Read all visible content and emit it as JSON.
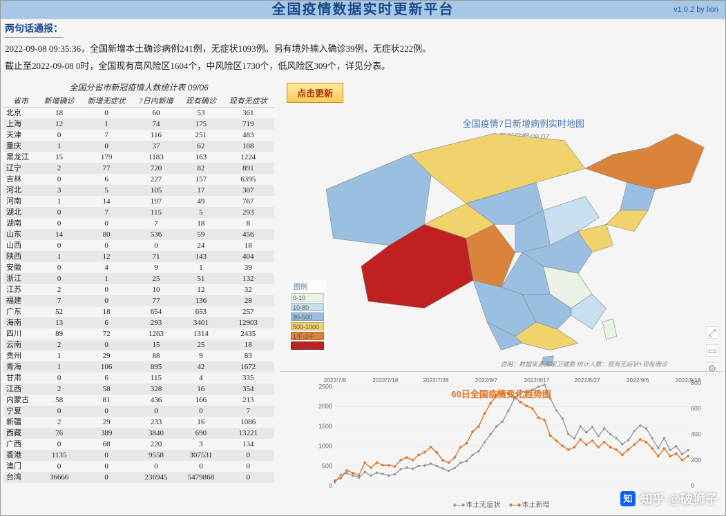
{
  "header": {
    "title": "全国疫情数据实时更新平台",
    "version": "v1.0.2 by lion"
  },
  "briefing": {
    "title": "两句话通报：",
    "line1": "2022-09-08 09:35:36，全国新增本土确诊病例241例，无症状1093例。另有境外输入确诊39例，无症状222例。",
    "line2": "截止至2022-09-08 0时，全国现有高风险区1604个，中风险区1730个，低风险区309个，详见分表。"
  },
  "update_button": "点击更新",
  "table": {
    "title": "全国分省市新冠疫情人数统计表  09/06",
    "columns": [
      "省市",
      "新增确诊",
      "新增无症状",
      "7日内新增",
      "现有确诊",
      "现有无症状"
    ],
    "rows": [
      [
        "北京",
        18,
        0,
        60,
        53,
        361
      ],
      [
        "上海",
        12,
        1,
        74,
        175,
        719
      ],
      [
        "天津",
        0,
        7,
        116,
        251,
        483
      ],
      [
        "重庆",
        1,
        0,
        37,
        62,
        108
      ],
      [
        "黑龙江",
        15,
        179,
        1183,
        163,
        1224
      ],
      [
        "辽宁",
        2,
        77,
        720,
        82,
        891
      ],
      [
        "吉林",
        0,
        6,
        227,
        157,
        6395
      ],
      [
        "河北",
        3,
        5,
        105,
        17,
        307
      ],
      [
        "河南",
        1,
        14,
        197,
        49,
        767
      ],
      [
        "湖北",
        0,
        7,
        115,
        5,
        293
      ],
      [
        "湖南",
        0,
        0,
        7,
        18,
        8
      ],
      [
        "山东",
        14,
        80,
        536,
        59,
        456
      ],
      [
        "山西",
        0,
        0,
        0,
        24,
        18
      ],
      [
        "陕西",
        1,
        12,
        71,
        143,
        404
      ],
      [
        "安徽",
        0,
        4,
        9,
        1,
        39
      ],
      [
        "浙江",
        0,
        1,
        25,
        51,
        132
      ],
      [
        "江苏",
        2,
        0,
        10,
        12,
        32
      ],
      [
        "福建",
        7,
        0,
        77,
        136,
        28
      ],
      [
        "广东",
        52,
        18,
        654,
        653,
        257
      ],
      [
        "海南",
        13,
        6,
        293,
        3401,
        12903
      ],
      [
        "四川",
        89,
        72,
        1263,
        1314,
        2435
      ],
      [
        "云南",
        2,
        0,
        15,
        25,
        18
      ],
      [
        "贵州",
        1,
        29,
        88,
        9,
        83
      ],
      [
        "青海",
        1,
        106,
        895,
        42,
        1672
      ],
      [
        "甘肃",
        0,
        6,
        115,
        4,
        335
      ],
      [
        "江西",
        2,
        58,
        328,
        16,
        354
      ],
      [
        "内蒙古",
        58,
        81,
        436,
        166,
        213
      ],
      [
        "宁夏",
        0,
        0,
        0,
        0,
        7
      ],
      [
        "新疆",
        2,
        29,
        233,
        16,
        1086
      ],
      [
        "西藏",
        76,
        389,
        3840,
        690,
        13221
      ],
      [
        "广西",
        0,
        68,
        220,
        3,
        134
      ],
      [
        "香港",
        1135,
        0,
        9558,
        307531,
        0
      ],
      [
        "澳门",
        0,
        0,
        0,
        0,
        0
      ],
      [
        "台湾",
        36666,
        0,
        236945,
        5479868,
        0
      ]
    ],
    "alt_row_bg": "#e8e8e8"
  },
  "map": {
    "title": "全国疫情7日新增病例实时地图",
    "subtitle": "更新日期    09.07",
    "note": "说明：数据来源国家卫健委  统计人数：现有无症状+现有确诊",
    "legend_title": "图例",
    "legend": [
      {
        "label": "0-10",
        "color": "#eaf3e6"
      },
      {
        "label": "10-80",
        "color": "#c8dff0"
      },
      {
        "label": "80-500",
        "color": "#9bbfe0"
      },
      {
        "label": "500-1000",
        "color": "#f2d26b"
      },
      {
        "label": "1千-3千",
        "color": "#d9843a"
      },
      {
        "label": "3千以上",
        "color": "#c02020"
      }
    ],
    "colors": {
      "background": "#ffffff",
      "border": "#888888",
      "tibet": "#c02020",
      "sichuan": "#d9843a",
      "heilongjiang": "#d9843a",
      "qinghai": "#f2d26b",
      "inner_mongolia": "#f2d26b",
      "guangdong": "#f2d26b",
      "xinjiang": "#9bbfe0",
      "gansu": "#9bbfe0",
      "shaanxi": "#9bbfe0",
      "yunnan": "#9bbfe0",
      "guizhou": "#9bbfe0",
      "hubei": "#9bbfe0",
      "shandong": "#f2d26b",
      "hebei": "#9bbfe0",
      "henan": "#9bbfe0",
      "jilin": "#9bbfe0",
      "liaoning": "#f2d26b",
      "zhejiang": "#eaf3e6",
      "jiangxi": "#9bbfe0",
      "fujian": "#c8dff0",
      "guangxi": "#9bbfe0",
      "hainan": "#9bbfe0",
      "other": "#c8dff0",
      "light": "#eaf3e6"
    }
  },
  "chart": {
    "title": "60日全国疫情变化趋势图",
    "x_labels": [
      "2022/7/8",
      "2022/7/18",
      "2022/7/28",
      "2022/8/7",
      "2022/8/17",
      "2022/8/27",
      "2022/9/6",
      "2022/9/16"
    ],
    "y_left_ticks": [
      0,
      500,
      1000,
      1500,
      2000,
      2500
    ],
    "y_right_ticks": [
      0,
      200,
      400,
      600,
      800
    ],
    "series": [
      {
        "name": "本土无症状",
        "color": "#999999",
        "marker": "circle"
      },
      {
        "name": "本土新增",
        "color": "#e07020",
        "marker": "circle"
      }
    ],
    "series1_values": [
      90,
      280,
      320,
      260,
      210,
      350,
      260,
      330,
      300,
      260,
      290,
      420,
      460,
      430,
      500,
      510,
      560,
      500,
      440,
      380,
      450,
      580,
      620,
      780,
      870,
      1100,
      1300,
      1500,
      1620,
      1900,
      2200,
      2400,
      2350,
      2420,
      2500,
      2550,
      2200,
      1900,
      1700,
      1300,
      1200,
      1500,
      1350,
      1480,
      1250,
      1450,
      1300,
      1200,
      1050,
      1150,
      1380,
      1520,
      1450,
      1200,
      950,
      1200,
      900,
      1000,
      800,
      900
    ],
    "series2_values": [
      40,
      60,
      120,
      100,
      80,
      180,
      140,
      180,
      160,
      160,
      150,
      200,
      220,
      200,
      240,
      260,
      300,
      260,
      200,
      180,
      220,
      300,
      330,
      420,
      460,
      560,
      640,
      700,
      720,
      720,
      690,
      650,
      620,
      600,
      530,
      510,
      390,
      350,
      310,
      280,
      300,
      360,
      320,
      350,
      300,
      340,
      300,
      280,
      240,
      280,
      320,
      360,
      340,
      290,
      230,
      290,
      230,
      250,
      200,
      230
    ],
    "grid_color": "#e0e0e0",
    "bg": "#ffffff"
  },
  "watermark": "知乎 @破狮子",
  "side_tools": [
    "⤢",
    "▭",
    "⚙"
  ]
}
